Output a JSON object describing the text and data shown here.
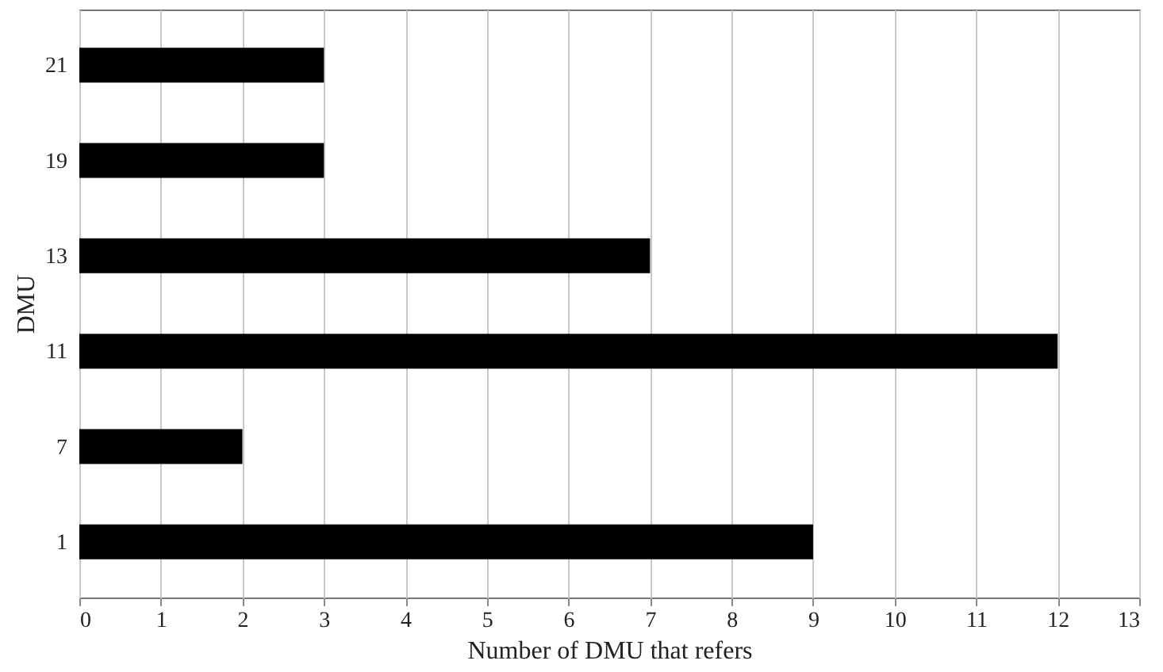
{
  "chart_data": {
    "type": "bar",
    "orientation": "horizontal",
    "xlabel": "Number of DMU that refers",
    "ylabel": "DMU",
    "categories": [
      "21",
      "19",
      "13",
      "11",
      "7",
      "1"
    ],
    "values": [
      3,
      3,
      7,
      12,
      2,
      9
    ],
    "color": "#000000",
    "xlim": [
      0,
      13
    ],
    "xticks": [
      0,
      1,
      2,
      3,
      4,
      5,
      6,
      7,
      8,
      9,
      10,
      11,
      12,
      13
    ],
    "grid": "x"
  }
}
